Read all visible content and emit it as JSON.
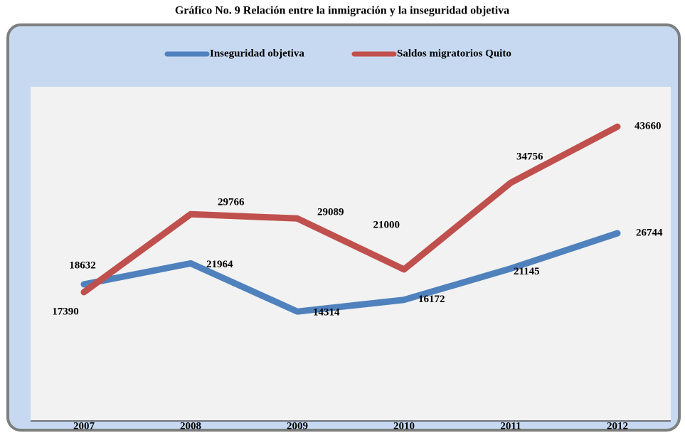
{
  "chart_data": {
    "type": "line",
    "title": "Gráfico No. 9  Relación entre la inmigración y la inseguridad objetiva",
    "categories": [
      "2007",
      "2008",
      "2009",
      "2010",
      "2011",
      "2012"
    ],
    "series": [
      {
        "name": "Inseguridad objetiva",
        "color": "#4f81bd",
        "values": [
          18632,
          21964,
          14314,
          16172,
          21145,
          26744
        ]
      },
      {
        "name": "Saldos migratorios Quito",
        "color": "#c0504d",
        "values": [
          17390,
          29766,
          29089,
          21000,
          34756,
          43660
        ]
      }
    ],
    "ylim": [
      0,
      50000
    ]
  }
}
